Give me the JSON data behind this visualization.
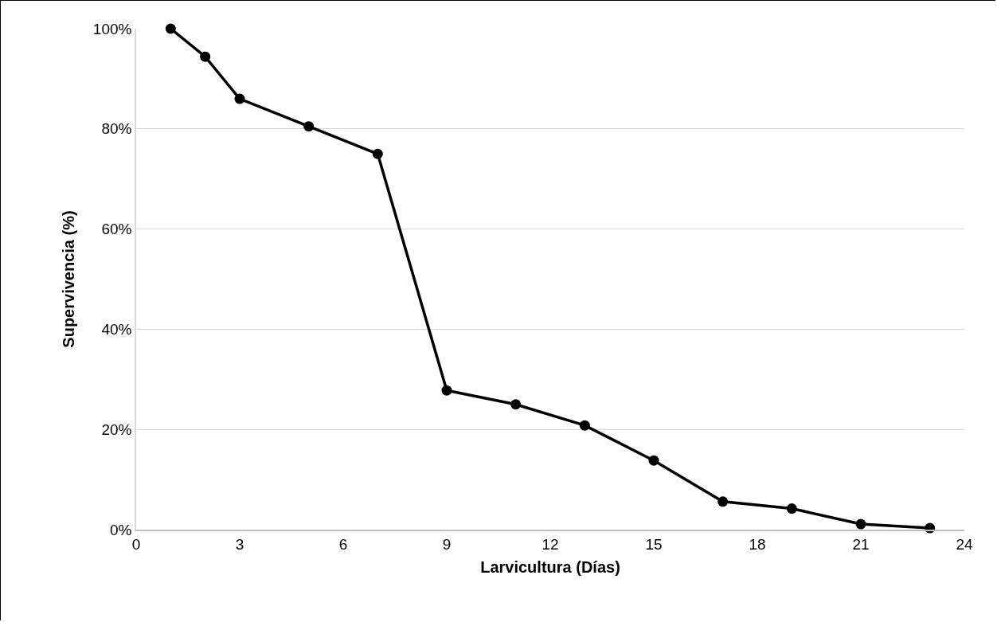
{
  "chart_data": {
    "type": "line",
    "xlabel": "Larvicultura (Días)",
    "ylabel": "Supervivencia (%)",
    "x": [
      1,
      2,
      3,
      5,
      7,
      9,
      11,
      13,
      15,
      17,
      19,
      21,
      23
    ],
    "series": [
      {
        "color": "#000000",
        "values": [
          100,
          94.4,
          86,
          80.5,
          75,
          27.8,
          25,
          20.8,
          13.8,
          5.6,
          4.2,
          1.1,
          0.3
        ]
      }
    ],
    "xlim": [
      0,
      24
    ],
    "xticks": [
      0,
      3,
      6,
      9,
      12,
      15,
      18,
      21,
      24
    ],
    "ylim": [
      0,
      100
    ],
    "yticks": [
      {
        "value": 0,
        "label": "0%"
      },
      {
        "value": 20,
        "label": "20%"
      },
      {
        "value": 40,
        "label": "40%"
      },
      {
        "value": 60,
        "label": "60%"
      },
      {
        "value": 80,
        "label": "80%"
      },
      {
        "value": 100,
        "label": "100%"
      }
    ],
    "grid": "y",
    "marker": "circle",
    "line_style": "solid",
    "legend": false
  }
}
